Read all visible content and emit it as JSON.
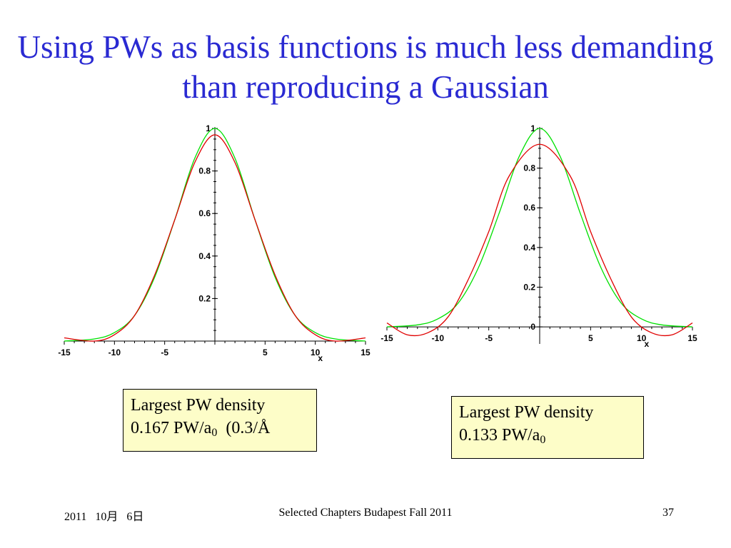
{
  "slide": {
    "title": "Using PWs as basis functions is much less demanding than reproducing a Gaussian",
    "footer": {
      "date": "2011   10月   6日",
      "center": "Selected Chapters Budapest Fall 2011",
      "page": "37"
    }
  },
  "notes": {
    "left": {
      "line1": "Largest PW density",
      "line2_main": "0.167 PW/a",
      "line2_sub": "0",
      "line2_tail": "  (0.3/Å"
    },
    "right": {
      "line1": "Largest PW density",
      "line2_main": "0.133 PW/a",
      "line2_sub": "0",
      "line2_tail": ""
    }
  },
  "colors": {
    "title": "#2a2ad2",
    "gaussian": "#00e000",
    "pw_fit": "#e00000",
    "note_bg": "#fdfdc8"
  },
  "chart_data": [
    {
      "type": "line",
      "title": "",
      "xlabel": "x",
      "ylabel": "",
      "xlim": [
        -15,
        15
      ],
      "ylim": [
        0,
        1
      ],
      "x_ticks": [
        -15,
        -10,
        -5,
        5,
        10,
        15
      ],
      "y_ticks": [
        0.2,
        0.4,
        0.6,
        0.8,
        1
      ],
      "series": [
        {
          "color": "#00e000",
          "x": [
            -15,
            -12,
            -10,
            -8,
            -6,
            -4,
            -2,
            0,
            2,
            4,
            6,
            8,
            10,
            12,
            15
          ],
          "y": [
            0.0,
            0.01,
            0.04,
            0.12,
            0.3,
            0.57,
            0.86,
            1.0,
            0.86,
            0.57,
            0.3,
            0.12,
            0.04,
            0.01,
            0.0
          ]
        },
        {
          "color": "#e00000",
          "x": [
            -15,
            -12,
            -10,
            -8,
            -6,
            -4,
            -2,
            0,
            2,
            4,
            6,
            8,
            10,
            12,
            15
          ],
          "y": [
            0.015,
            0.0,
            0.03,
            0.12,
            0.31,
            0.57,
            0.84,
            0.97,
            0.84,
            0.57,
            0.31,
            0.12,
            0.03,
            0.0,
            0.015
          ]
        }
      ]
    },
    {
      "type": "line",
      "title": "",
      "xlabel": "x",
      "ylabel": "",
      "xlim": [
        -15,
        15
      ],
      "ylim": [
        -0.05,
        1
      ],
      "x_ticks": [
        -15,
        -10,
        -5,
        5,
        10,
        15
      ],
      "y_ticks": [
        0,
        0.2,
        0.4,
        0.6,
        0.8,
        1
      ],
      "series": [
        {
          "color": "#00e000",
          "x": [
            -15,
            -12,
            -10,
            -8,
            -6,
            -4,
            -2,
            0,
            2,
            4,
            6,
            8,
            10,
            12,
            15
          ],
          "y": [
            0.0,
            0.01,
            0.04,
            0.12,
            0.3,
            0.57,
            0.86,
            1.0,
            0.86,
            0.57,
            0.3,
            0.12,
            0.04,
            0.01,
            0.0
          ]
        },
        {
          "color": "#e00000",
          "x": [
            -15,
            -13,
            -11,
            -9,
            -7,
            -5,
            -3,
            0,
            3,
            5,
            7,
            9,
            11,
            13,
            15
          ],
          "y": [
            0.02,
            -0.04,
            -0.03,
            0.05,
            0.24,
            0.48,
            0.76,
            0.92,
            0.76,
            0.48,
            0.24,
            0.05,
            -0.03,
            -0.04,
            0.02
          ]
        }
      ]
    }
  ]
}
